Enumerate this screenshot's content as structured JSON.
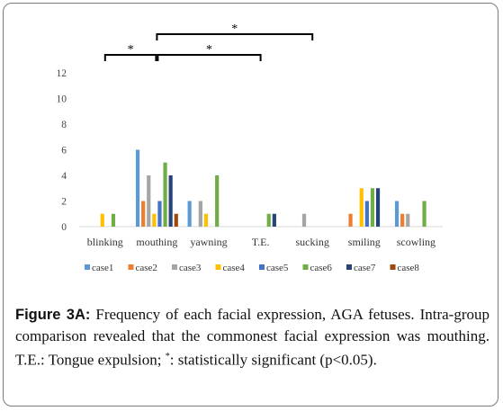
{
  "chart_data": {
    "type": "bar",
    "categories": [
      "blinking",
      "mouthing",
      "yawning",
      "T.E.",
      "sucking",
      "smiling",
      "scowling"
    ],
    "series": [
      {
        "name": "case1",
        "color": "#5B9BD5",
        "values": [
          0,
          6,
          2,
          0,
          0,
          0,
          2
        ]
      },
      {
        "name": "case2",
        "color": "#ED7D31",
        "values": [
          0,
          2,
          0,
          0,
          0,
          1,
          1
        ]
      },
      {
        "name": "case3",
        "color": "#A5A5A5",
        "values": [
          0,
          4,
          2,
          0,
          1,
          0,
          1
        ]
      },
      {
        "name": "case4",
        "color": "#FFC000",
        "values": [
          1,
          1,
          1,
          0,
          0,
          3,
          0
        ]
      },
      {
        "name": "case5",
        "color": "#4472C4",
        "values": [
          0,
          2,
          0,
          0,
          0,
          2,
          0
        ]
      },
      {
        "name": "case6",
        "color": "#70AD47",
        "values": [
          1,
          5,
          4,
          1,
          0,
          3,
          2
        ]
      },
      {
        "name": "case7",
        "color": "#264478",
        "values": [
          0,
          4,
          0,
          1,
          0,
          3,
          0
        ]
      },
      {
        "name": "case8",
        "color": "#9E480E",
        "values": [
          0,
          1,
          0,
          0,
          0,
          0,
          0
        ]
      }
    ],
    "yticks": [
      "0",
      "2",
      "4",
      "6",
      "8",
      "10",
      "12"
    ],
    "ylim": [
      0,
      12
    ],
    "grid": false,
    "legend_position": "bottom",
    "significance": [
      {
        "from": "blinking",
        "to": "mouthing",
        "label": "*"
      },
      {
        "from": "mouthing",
        "to": "T.E.",
        "label": "*"
      },
      {
        "from": "mouthing",
        "to": "sucking",
        "label": "*"
      }
    ]
  },
  "caption": {
    "label": "Figure 3A:",
    "text_main": " Frequency of each facial expression, AGA fetuses. Intra-group comparison revealed that the commonest facial expression was mouthing. T.E.: Tongue expulsion; ",
    "star": "*",
    "text_end": ": statistically significant (p<0.05)."
  }
}
